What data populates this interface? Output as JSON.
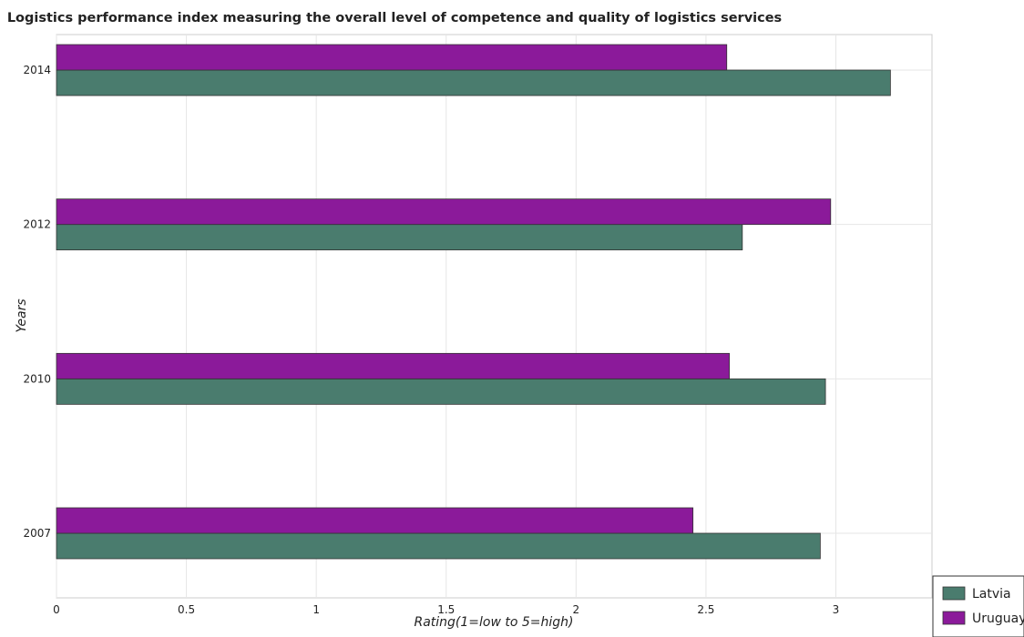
{
  "chart_data": {
    "type": "bar",
    "orientation": "horizontal",
    "title": "Logistics performance index measuring the overall level of competence and quality of logistics services",
    "xlabel": "Rating(1=low to 5=high)",
    "ylabel": "Years",
    "categories": [
      "2007",
      "2010",
      "2012",
      "2014"
    ],
    "xlim": [
      0,
      3.37
    ],
    "xticks": [
      0,
      0.5,
      1,
      1.5,
      2,
      2.5,
      3
    ],
    "xtick_labels": [
      "0",
      "0.5",
      "1",
      "1.5",
      "2",
      "2.5",
      "3"
    ],
    "grid": true,
    "legend_position": "bottom-right",
    "series": [
      {
        "name": "Latvia",
        "color": "#4a7c6e",
        "values": [
          2.94,
          2.96,
          2.64,
          3.21
        ]
      },
      {
        "name": "Uruguay",
        "color": "#8b1a9a",
        "values": [
          2.45,
          2.59,
          2.98,
          2.58
        ]
      }
    ]
  }
}
